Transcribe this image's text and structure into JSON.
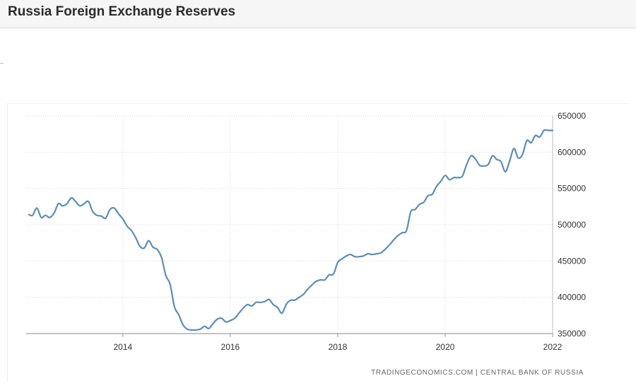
{
  "page": {
    "title": "Russia Foreign Exchange Reserves"
  },
  "chart_data": {
    "type": "line",
    "title": "Russia Foreign Exchange Reserves",
    "xlabel": "",
    "ylabel": "",
    "xlim": [
      2012.2,
      2022.0
    ],
    "ylim": [
      350000,
      650000
    ],
    "x_ticks": [
      {
        "value": 2014,
        "label": "2014"
      },
      {
        "value": 2016,
        "label": "2016"
      },
      {
        "value": 2018,
        "label": "2018"
      },
      {
        "value": 2020,
        "label": "2020"
      },
      {
        "value": 2022,
        "label": "2022"
      }
    ],
    "y_ticks": [
      {
        "value": 350000,
        "label": "350000"
      },
      {
        "value": 400000,
        "label": "400000"
      },
      {
        "value": 450000,
        "label": "450000"
      },
      {
        "value": 500000,
        "label": "500000"
      },
      {
        "value": 550000,
        "label": "550000"
      },
      {
        "value": 600000,
        "label": "600000"
      },
      {
        "value": 650000,
        "label": "650000"
      }
    ],
    "grid": true,
    "line_color": "#5b8db8",
    "series": [
      {
        "name": "Russia Foreign Exchange Reserves",
        "points": [
          [
            2012.25,
            514000
          ],
          [
            2012.32,
            513000
          ],
          [
            2012.4,
            523000
          ],
          [
            2012.48,
            510000
          ],
          [
            2012.56,
            513000
          ],
          [
            2012.64,
            510000
          ],
          [
            2012.72,
            516000
          ],
          [
            2012.8,
            529000
          ],
          [
            2012.88,
            526000
          ],
          [
            2012.96,
            529000
          ],
          [
            2013.04,
            537000
          ],
          [
            2013.12,
            532000
          ],
          [
            2013.2,
            526000
          ],
          [
            2013.28,
            529000
          ],
          [
            2013.36,
            532000
          ],
          [
            2013.44,
            518000
          ],
          [
            2013.52,
            513000
          ],
          [
            2013.6,
            512000
          ],
          [
            2013.68,
            509000
          ],
          [
            2013.76,
            521000
          ],
          [
            2013.84,
            523000
          ],
          [
            2013.92,
            515000
          ],
          [
            2014.0,
            508000
          ],
          [
            2014.08,
            498000
          ],
          [
            2014.16,
            492000
          ],
          [
            2014.24,
            482000
          ],
          [
            2014.32,
            470000
          ],
          [
            2014.4,
            468000
          ],
          [
            2014.48,
            478000
          ],
          [
            2014.56,
            469000
          ],
          [
            2014.64,
            466000
          ],
          [
            2014.72,
            455000
          ],
          [
            2014.8,
            430000
          ],
          [
            2014.88,
            418000
          ],
          [
            2014.96,
            387000
          ],
          [
            2015.04,
            376000
          ],
          [
            2015.12,
            362000
          ],
          [
            2015.2,
            356000
          ],
          [
            2015.28,
            355000
          ],
          [
            2015.36,
            355000
          ],
          [
            2015.44,
            356000
          ],
          [
            2015.52,
            360000
          ],
          [
            2015.6,
            357000
          ],
          [
            2015.68,
            364000
          ],
          [
            2015.76,
            370000
          ],
          [
            2015.84,
            371000
          ],
          [
            2015.92,
            366000
          ],
          [
            2016.0,
            368000
          ],
          [
            2016.08,
            371000
          ],
          [
            2016.16,
            378000
          ],
          [
            2016.24,
            385000
          ],
          [
            2016.32,
            390000
          ],
          [
            2016.4,
            388000
          ],
          [
            2016.48,
            393000
          ],
          [
            2016.56,
            393000
          ],
          [
            2016.64,
            394000
          ],
          [
            2016.72,
            397000
          ],
          [
            2016.8,
            390000
          ],
          [
            2016.88,
            386000
          ],
          [
            2016.96,
            378000
          ],
          [
            2017.04,
            390000
          ],
          [
            2017.12,
            396000
          ],
          [
            2017.2,
            396000
          ],
          [
            2017.28,
            400000
          ],
          [
            2017.36,
            404000
          ],
          [
            2017.44,
            411000
          ],
          [
            2017.52,
            417000
          ],
          [
            2017.6,
            422000
          ],
          [
            2017.68,
            424000
          ],
          [
            2017.76,
            424000
          ],
          [
            2017.84,
            431000
          ],
          [
            2017.92,
            432000
          ],
          [
            2018.0,
            448000
          ],
          [
            2018.08,
            453000
          ],
          [
            2018.16,
            457000
          ],
          [
            2018.24,
            459000
          ],
          [
            2018.32,
            456000
          ],
          [
            2018.4,
            456000
          ],
          [
            2018.48,
            457000
          ],
          [
            2018.56,
            460000
          ],
          [
            2018.64,
            459000
          ],
          [
            2018.72,
            460000
          ],
          [
            2018.8,
            461000
          ],
          [
            2018.88,
            466000
          ],
          [
            2018.96,
            472000
          ],
          [
            2019.04,
            479000
          ],
          [
            2019.12,
            485000
          ],
          [
            2019.2,
            489000
          ],
          [
            2019.28,
            492000
          ],
          [
            2019.36,
            518000
          ],
          [
            2019.44,
            521000
          ],
          [
            2019.52,
            528000
          ],
          [
            2019.6,
            531000
          ],
          [
            2019.68,
            540000
          ],
          [
            2019.76,
            542000
          ],
          [
            2019.84,
            553000
          ],
          [
            2019.92,
            560000
          ],
          [
            2020.0,
            568000
          ],
          [
            2020.08,
            562000
          ],
          [
            2020.16,
            565000
          ],
          [
            2020.24,
            565000
          ],
          [
            2020.32,
            567000
          ],
          [
            2020.4,
            583000
          ],
          [
            2020.48,
            595000
          ],
          [
            2020.56,
            591000
          ],
          [
            2020.64,
            582000
          ],
          [
            2020.72,
            581000
          ],
          [
            2020.8,
            583000
          ],
          [
            2020.88,
            595000
          ],
          [
            2020.96,
            590000
          ],
          [
            2021.04,
            587000
          ],
          [
            2021.12,
            573000
          ],
          [
            2021.2,
            588000
          ],
          [
            2021.28,
            605000
          ],
          [
            2021.36,
            592000
          ],
          [
            2021.44,
            597000
          ],
          [
            2021.52,
            616000
          ],
          [
            2021.6,
            613000
          ],
          [
            2021.68,
            623000
          ],
          [
            2021.76,
            621000
          ],
          [
            2021.84,
            630000
          ],
          [
            2021.92,
            630000
          ],
          [
            2022.0,
            630000
          ]
        ]
      }
    ],
    "source": "TRADINGECONOMICS.COM  |  CENTRAL BANK OF RUSSIA"
  }
}
